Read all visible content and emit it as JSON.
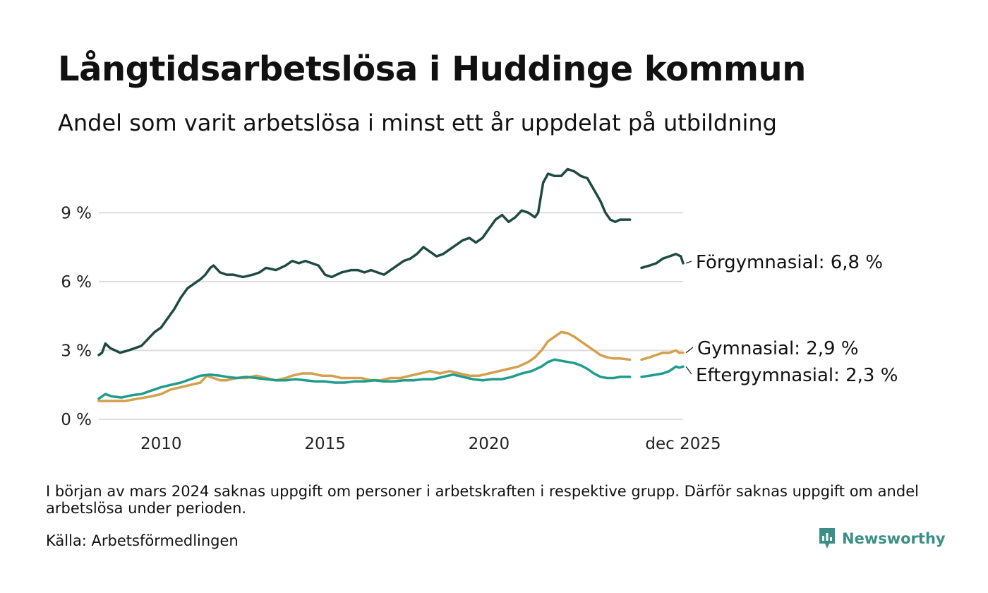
{
  "header": {
    "title": "Långtidsarbetslösa i Huddinge kommun",
    "subtitle": "Andel som varit arbetslösa i minst ett år uppdelat på utbildning"
  },
  "footer": {
    "note": "I början av mars 2024 saknas uppgift om personer i arbetskraften i respektive grupp. Därför saknas uppgift om andel arbetslösa under perioden.",
    "source": "Källa: Arbetsförmedlingen",
    "brand": "Newsworthy"
  },
  "colors": {
    "forgymnasial": "#1f4a42",
    "gymnasial": "#d4a04c",
    "eftergymnasial": "#1f9c8c",
    "grid": "#dddddd",
    "brand": "#3c8f86"
  },
  "chart_data": {
    "type": "line",
    "title": "Långtidsarbetslösa i Huddinge kommun",
    "subtitle": "Andel som varit arbetslösa i minst ett år uppdelat på utbildning",
    "xlabel": "",
    "ylabel": "",
    "xlim": [
      2008.1,
      2025.92
    ],
    "ylim": [
      0,
      11.5
    ],
    "yticks": [
      0,
      3,
      6,
      9
    ],
    "ytick_labels": [
      "0 %",
      "3 %",
      "6 %",
      "9 %"
    ],
    "xticks": [
      2010,
      2015,
      2020,
      2025.92
    ],
    "xtick_labels": [
      "2010",
      "2015",
      "2020",
      "dec 2025"
    ],
    "grid": true,
    "gap": [
      2023.9,
      2024.3
    ],
    "series": [
      {
        "name": "Förgymnasial",
        "label": "Förgymnasial: 6,8 %",
        "color": "#1f4a42",
        "points": [
          [
            2008.1,
            2.8
          ],
          [
            2008.2,
            2.9
          ],
          [
            2008.3,
            3.3
          ],
          [
            2008.45,
            3.1
          ],
          [
            2008.6,
            3.0
          ],
          [
            2008.75,
            2.9
          ],
          [
            2009.0,
            3.0
          ],
          [
            2009.2,
            3.1
          ],
          [
            2009.4,
            3.2
          ],
          [
            2009.6,
            3.5
          ],
          [
            2009.8,
            3.8
          ],
          [
            2010.0,
            4.0
          ],
          [
            2010.2,
            4.4
          ],
          [
            2010.4,
            4.8
          ],
          [
            2010.6,
            5.3
          ],
          [
            2010.8,
            5.7
          ],
          [
            2011.0,
            5.9
          ],
          [
            2011.2,
            6.1
          ],
          [
            2011.35,
            6.3
          ],
          [
            2011.5,
            6.6
          ],
          [
            2011.6,
            6.7
          ],
          [
            2011.8,
            6.4
          ],
          [
            2012.0,
            6.3
          ],
          [
            2012.2,
            6.3
          ],
          [
            2012.5,
            6.2
          ],
          [
            2012.8,
            6.3
          ],
          [
            2013.0,
            6.4
          ],
          [
            2013.2,
            6.6
          ],
          [
            2013.5,
            6.5
          ],
          [
            2013.8,
            6.7
          ],
          [
            2014.0,
            6.9
          ],
          [
            2014.2,
            6.8
          ],
          [
            2014.4,
            6.9
          ],
          [
            2014.6,
            6.8
          ],
          [
            2014.8,
            6.7
          ],
          [
            2015.0,
            6.3
          ],
          [
            2015.2,
            6.2
          ],
          [
            2015.5,
            6.4
          ],
          [
            2015.8,
            6.5
          ],
          [
            2016.0,
            6.5
          ],
          [
            2016.2,
            6.4
          ],
          [
            2016.4,
            6.5
          ],
          [
            2016.6,
            6.4
          ],
          [
            2016.8,
            6.3
          ],
          [
            2017.0,
            6.5
          ],
          [
            2017.2,
            6.7
          ],
          [
            2017.4,
            6.9
          ],
          [
            2017.6,
            7.0
          ],
          [
            2017.8,
            7.2
          ],
          [
            2018.0,
            7.5
          ],
          [
            2018.2,
            7.3
          ],
          [
            2018.4,
            7.1
          ],
          [
            2018.6,
            7.2
          ],
          [
            2018.8,
            7.4
          ],
          [
            2019.0,
            7.6
          ],
          [
            2019.2,
            7.8
          ],
          [
            2019.4,
            7.9
          ],
          [
            2019.6,
            7.7
          ],
          [
            2019.8,
            7.9
          ],
          [
            2020.0,
            8.3
          ],
          [
            2020.2,
            8.7
          ],
          [
            2020.4,
            8.9
          ],
          [
            2020.6,
            8.6
          ],
          [
            2020.8,
            8.8
          ],
          [
            2021.0,
            9.1
          ],
          [
            2021.2,
            9.0
          ],
          [
            2021.4,
            8.8
          ],
          [
            2021.5,
            9.0
          ],
          [
            2021.65,
            10.3
          ],
          [
            2021.8,
            10.7
          ],
          [
            2022.0,
            10.6
          ],
          [
            2022.2,
            10.6
          ],
          [
            2022.4,
            10.9
          ],
          [
            2022.6,
            10.8
          ],
          [
            2022.8,
            10.6
          ],
          [
            2023.0,
            10.5
          ],
          [
            2023.2,
            10.0
          ],
          [
            2023.4,
            9.5
          ],
          [
            2023.55,
            9.0
          ],
          [
            2023.7,
            8.7
          ],
          [
            2023.85,
            8.6
          ],
          [
            2024.0,
            8.7
          ],
          [
            2024.3,
            8.7
          ],
          [
            2024.65,
            6.6
          ],
          [
            2024.9,
            6.7
          ],
          [
            2025.1,
            6.8
          ],
          [
            2025.3,
            7.0
          ],
          [
            2025.5,
            7.1
          ],
          [
            2025.7,
            7.2
          ],
          [
            2025.85,
            7.1
          ],
          [
            2025.92,
            6.8
          ]
        ]
      },
      {
        "name": "Gymnasial",
        "label": "Gymnasial: 2,9 %",
        "color": "#d4a04c",
        "points": [
          [
            2008.1,
            0.8
          ],
          [
            2008.5,
            0.8
          ],
          [
            2008.9,
            0.8
          ],
          [
            2009.3,
            0.9
          ],
          [
            2009.7,
            1.0
          ],
          [
            2010.0,
            1.1
          ],
          [
            2010.3,
            1.3
          ],
          [
            2010.6,
            1.4
          ],
          [
            2010.9,
            1.5
          ],
          [
            2011.2,
            1.6
          ],
          [
            2011.4,
            1.9
          ],
          [
            2011.6,
            1.8
          ],
          [
            2011.8,
            1.7
          ],
          [
            2012.0,
            1.7
          ],
          [
            2012.3,
            1.8
          ],
          [
            2012.6,
            1.8
          ],
          [
            2012.9,
            1.9
          ],
          [
            2013.2,
            1.8
          ],
          [
            2013.5,
            1.7
          ],
          [
            2013.8,
            1.8
          ],
          [
            2014.0,
            1.9
          ],
          [
            2014.3,
            2.0
          ],
          [
            2014.6,
            2.0
          ],
          [
            2014.9,
            1.9
          ],
          [
            2015.2,
            1.9
          ],
          [
            2015.5,
            1.8
          ],
          [
            2015.8,
            1.8
          ],
          [
            2016.1,
            1.8
          ],
          [
            2016.4,
            1.7
          ],
          [
            2016.7,
            1.7
          ],
          [
            2017.0,
            1.8
          ],
          [
            2017.3,
            1.8
          ],
          [
            2017.6,
            1.9
          ],
          [
            2017.9,
            2.0
          ],
          [
            2018.2,
            2.1
          ],
          [
            2018.5,
            2.0
          ],
          [
            2018.8,
            2.1
          ],
          [
            2019.1,
            2.0
          ],
          [
            2019.4,
            1.9
          ],
          [
            2019.7,
            1.9
          ],
          [
            2020.0,
            2.0
          ],
          [
            2020.3,
            2.1
          ],
          [
            2020.6,
            2.2
          ],
          [
            2020.9,
            2.3
          ],
          [
            2021.2,
            2.5
          ],
          [
            2021.4,
            2.7
          ],
          [
            2021.6,
            3.0
          ],
          [
            2021.8,
            3.4
          ],
          [
            2022.0,
            3.6
          ],
          [
            2022.2,
            3.8
          ],
          [
            2022.4,
            3.75
          ],
          [
            2022.6,
            3.6
          ],
          [
            2022.8,
            3.4
          ],
          [
            2023.0,
            3.2
          ],
          [
            2023.2,
            3.0
          ],
          [
            2023.4,
            2.8
          ],
          [
            2023.6,
            2.7
          ],
          [
            2023.8,
            2.65
          ],
          [
            2024.0,
            2.65
          ],
          [
            2024.3,
            2.6
          ],
          [
            2024.65,
            2.6
          ],
          [
            2024.9,
            2.7
          ],
          [
            2025.1,
            2.8
          ],
          [
            2025.3,
            2.9
          ],
          [
            2025.5,
            2.9
          ],
          [
            2025.7,
            3.0
          ],
          [
            2025.8,
            2.9
          ],
          [
            2025.92,
            2.9
          ]
        ]
      },
      {
        "name": "Eftergymnasial",
        "label": "Eftergymnasial: 2,3 %",
        "color": "#1f9c8c",
        "points": [
          [
            2008.1,
            0.9
          ],
          [
            2008.3,
            1.1
          ],
          [
            2008.5,
            1.0
          ],
          [
            2008.8,
            0.95
          ],
          [
            2009.1,
            1.05
          ],
          [
            2009.4,
            1.1
          ],
          [
            2009.7,
            1.25
          ],
          [
            2010.0,
            1.4
          ],
          [
            2010.3,
            1.5
          ],
          [
            2010.6,
            1.6
          ],
          [
            2010.9,
            1.75
          ],
          [
            2011.2,
            1.9
          ],
          [
            2011.5,
            1.95
          ],
          [
            2011.8,
            1.9
          ],
          [
            2012.0,
            1.85
          ],
          [
            2012.3,
            1.8
          ],
          [
            2012.6,
            1.85
          ],
          [
            2012.9,
            1.8
          ],
          [
            2013.2,
            1.75
          ],
          [
            2013.5,
            1.7
          ],
          [
            2013.8,
            1.7
          ],
          [
            2014.1,
            1.75
          ],
          [
            2014.4,
            1.7
          ],
          [
            2014.7,
            1.65
          ],
          [
            2015.0,
            1.65
          ],
          [
            2015.3,
            1.6
          ],
          [
            2015.6,
            1.6
          ],
          [
            2015.9,
            1.65
          ],
          [
            2016.2,
            1.65
          ],
          [
            2016.5,
            1.7
          ],
          [
            2016.8,
            1.65
          ],
          [
            2017.1,
            1.65
          ],
          [
            2017.4,
            1.7
          ],
          [
            2017.7,
            1.7
          ],
          [
            2018.0,
            1.75
          ],
          [
            2018.3,
            1.75
          ],
          [
            2018.6,
            1.85
          ],
          [
            2018.9,
            1.95
          ],
          [
            2019.2,
            1.85
          ],
          [
            2019.5,
            1.75
          ],
          [
            2019.8,
            1.7
          ],
          [
            2020.1,
            1.75
          ],
          [
            2020.4,
            1.75
          ],
          [
            2020.7,
            1.85
          ],
          [
            2021.0,
            2.0
          ],
          [
            2021.3,
            2.1
          ],
          [
            2021.6,
            2.3
          ],
          [
            2021.8,
            2.5
          ],
          [
            2022.0,
            2.6
          ],
          [
            2022.2,
            2.55
          ],
          [
            2022.4,
            2.5
          ],
          [
            2022.6,
            2.45
          ],
          [
            2022.8,
            2.35
          ],
          [
            2023.0,
            2.2
          ],
          [
            2023.2,
            2.0
          ],
          [
            2023.4,
            1.85
          ],
          [
            2023.6,
            1.8
          ],
          [
            2023.8,
            1.8
          ],
          [
            2024.0,
            1.85
          ],
          [
            2024.3,
            1.85
          ],
          [
            2024.65,
            1.85
          ],
          [
            2024.9,
            1.9
          ],
          [
            2025.1,
            1.95
          ],
          [
            2025.3,
            2.0
          ],
          [
            2025.5,
            2.1
          ],
          [
            2025.7,
            2.3
          ],
          [
            2025.8,
            2.25
          ],
          [
            2025.92,
            2.3
          ]
        ]
      }
    ]
  }
}
